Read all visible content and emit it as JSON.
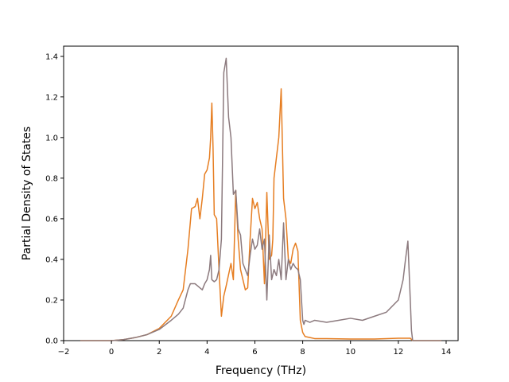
{
  "chart_data": {
    "type": "line",
    "title": "",
    "xlabel": "Frequency (THz)",
    "ylabel": "Partial Density of States",
    "xlim": [
      -2,
      14.5
    ],
    "ylim": [
      0,
      1.45
    ],
    "xticks": [
      -2,
      0,
      2,
      4,
      6,
      8,
      10,
      12,
      14
    ],
    "xtick_labels": [
      "−2",
      "0",
      "2",
      "4",
      "6",
      "8",
      "10",
      "12",
      "14"
    ],
    "yticks": [
      0.0,
      0.2,
      0.4,
      0.6,
      0.8,
      1.0,
      1.2,
      1.4
    ],
    "ytick_labels": [
      "0.0",
      "0.2",
      "0.4",
      "0.6",
      "0.8",
      "1.0",
      "1.2",
      "1.4"
    ],
    "grid": false,
    "legend": "none",
    "series": [
      {
        "color": "#e67e22",
        "x": [
          -1.3,
          0,
          0.5,
          1,
          1.5,
          2,
          2.5,
          2.8,
          3.0,
          3.2,
          3.35,
          3.5,
          3.6,
          3.7,
          3.8,
          3.9,
          4.0,
          4.1,
          4.15,
          4.2,
          4.25,
          4.3,
          4.4,
          4.5,
          4.6,
          4.7,
          4.8,
          5.0,
          5.1,
          5.2,
          5.3,
          5.4,
          5.5,
          5.6,
          5.7,
          5.8,
          5.9,
          6.0,
          6.1,
          6.2,
          6.3,
          6.4,
          6.5,
          6.6,
          6.7,
          6.75,
          6.8,
          6.9,
          7.0,
          7.1,
          7.2,
          7.3,
          7.4,
          7.5,
          7.6,
          7.7,
          7.8,
          7.9,
          8.0,
          8.05,
          8.1,
          8.3,
          8.5,
          9,
          10,
          11,
          12,
          12.5,
          12.6,
          13.8
        ],
        "y": [
          0.0,
          0.0,
          0.005,
          0.015,
          0.03,
          0.06,
          0.12,
          0.2,
          0.25,
          0.45,
          0.65,
          0.66,
          0.7,
          0.6,
          0.7,
          0.82,
          0.84,
          0.9,
          1.0,
          1.17,
          0.95,
          0.62,
          0.6,
          0.35,
          0.12,
          0.22,
          0.27,
          0.38,
          0.3,
          0.74,
          0.5,
          0.35,
          0.3,
          0.25,
          0.26,
          0.5,
          0.7,
          0.65,
          0.68,
          0.6,
          0.55,
          0.28,
          0.73,
          0.4,
          0.42,
          0.5,
          0.8,
          0.9,
          1.0,
          1.24,
          0.7,
          0.6,
          0.4,
          0.38,
          0.45,
          0.48,
          0.44,
          0.1,
          0.04,
          0.03,
          0.02,
          0.015,
          0.01,
          0.01,
          0.008,
          0.008,
          0.012,
          0.012,
          0.0,
          0.0
        ]
      },
      {
        "color": "#8c7a7e",
        "x": [
          -1.3,
          0,
          0.5,
          1,
          1.5,
          2,
          2.5,
          2.8,
          3.0,
          3.2,
          3.3,
          3.5,
          3.7,
          3.8,
          3.9,
          4.0,
          4.1,
          4.15,
          4.2,
          4.3,
          4.4,
          4.5,
          4.6,
          4.7,
          4.8,
          4.9,
          5.0,
          5.1,
          5.2,
          5.3,
          5.4,
          5.5,
          5.6,
          5.7,
          5.8,
          5.9,
          6.0,
          6.1,
          6.2,
          6.3,
          6.4,
          6.5,
          6.6,
          6.7,
          6.8,
          6.9,
          7.0,
          7.1,
          7.2,
          7.3,
          7.4,
          7.5,
          7.6,
          7.7,
          7.8,
          7.9,
          8.0,
          8.05,
          8.1,
          8.3,
          8.5,
          9,
          9.5,
          10,
          10.5,
          11,
          11.5,
          12,
          12.2,
          12.3,
          12.4,
          12.5,
          12.55,
          12.6,
          13.8
        ],
        "y": [
          0.0,
          0.0,
          0.005,
          0.015,
          0.03,
          0.055,
          0.1,
          0.13,
          0.16,
          0.25,
          0.28,
          0.28,
          0.26,
          0.25,
          0.28,
          0.3,
          0.35,
          0.42,
          0.3,
          0.29,
          0.3,
          0.35,
          0.5,
          1.32,
          1.39,
          1.1,
          1.0,
          0.72,
          0.74,
          0.55,
          0.52,
          0.38,
          0.35,
          0.32,
          0.42,
          0.5,
          0.45,
          0.47,
          0.55,
          0.45,
          0.5,
          0.2,
          0.52,
          0.3,
          0.35,
          0.32,
          0.4,
          0.3,
          0.58,
          0.3,
          0.4,
          0.35,
          0.38,
          0.36,
          0.35,
          0.3,
          0.1,
          0.08,
          0.1,
          0.09,
          0.1,
          0.09,
          0.1,
          0.11,
          0.1,
          0.12,
          0.14,
          0.2,
          0.3,
          0.4,
          0.49,
          0.2,
          0.05,
          0.0,
          0.0
        ]
      }
    ]
  }
}
